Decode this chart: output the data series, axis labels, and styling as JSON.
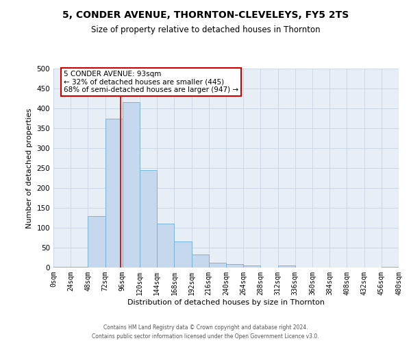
{
  "title": "5, CONDER AVENUE, THORNTON-CLEVELEYS, FY5 2TS",
  "subtitle": "Size of property relative to detached houses in Thornton",
  "xlabel": "Distribution of detached houses by size in Thornton",
  "ylabel": "Number of detached properties",
  "bar_edges": [
    0,
    24,
    48,
    72,
    96,
    120,
    144,
    168,
    192,
    216,
    240,
    264,
    288,
    312,
    336,
    360,
    384,
    408,
    432,
    456,
    480
  ],
  "bar_heights": [
    2,
    2,
    130,
    375,
    415,
    245,
    110,
    65,
    33,
    12,
    8,
    5,
    0,
    5,
    0,
    0,
    0,
    0,
    0,
    2
  ],
  "bar_color": "#c5d8ed",
  "bar_edgecolor": "#6aaed6",
  "property_line_x": 93,
  "property_line_color": "#cc0000",
  "annotation_title": "5 CONDER AVENUE: 93sqm",
  "annotation_line1": "← 32% of detached houses are smaller (445)",
  "annotation_line2": "68% of semi-detached houses are larger (947) →",
  "annotation_box_edgecolor": "#cc0000",
  "annotation_box_facecolor": "#ffffff",
  "xlim": [
    0,
    480
  ],
  "ylim": [
    0,
    500
  ],
  "xtick_labels": [
    "0sqm",
    "24sqm",
    "48sqm",
    "72sqm",
    "96sqm",
    "120sqm",
    "144sqm",
    "168sqm",
    "192sqm",
    "216sqm",
    "240sqm",
    "264sqm",
    "288sqm",
    "312sqm",
    "336sqm",
    "360sqm",
    "384sqm",
    "408sqm",
    "432sqm",
    "456sqm",
    "480sqm"
  ],
  "xtick_positions": [
    0,
    24,
    48,
    72,
    96,
    120,
    144,
    168,
    192,
    216,
    240,
    264,
    288,
    312,
    336,
    360,
    384,
    408,
    432,
    456,
    480
  ],
  "ytick_positions": [
    0,
    50,
    100,
    150,
    200,
    250,
    300,
    350,
    400,
    450,
    500
  ],
  "footer_line1": "Contains HM Land Registry data © Crown copyright and database right 2024.",
  "footer_line2": "Contains public sector information licensed under the Open Government Licence v3.0.",
  "grid_color": "#c8d4e3",
  "background_color": "#e8eef6",
  "fig_background": "#ffffff",
  "title_fontsize": 10,
  "subtitle_fontsize": 8.5,
  "ylabel_fontsize": 8,
  "xlabel_fontsize": 8,
  "tick_fontsize": 7,
  "annotation_fontsize": 7.5,
  "footer_fontsize": 5.5
}
